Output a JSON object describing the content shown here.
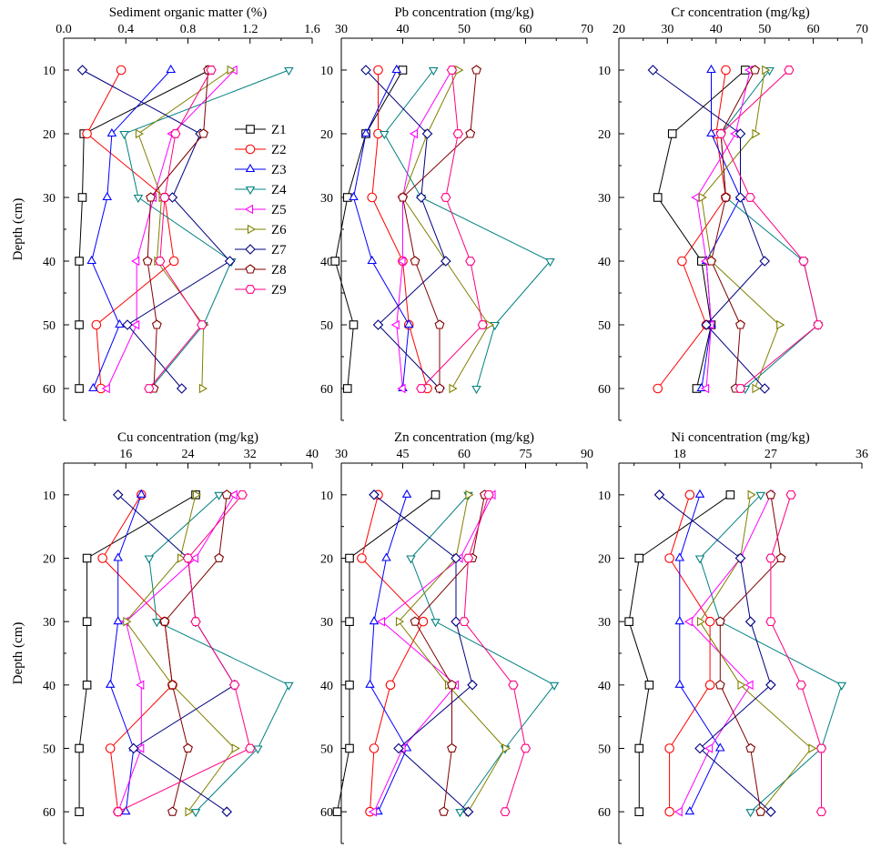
{
  "figure": {
    "y_axis_label": "Depth (cm)"
  },
  "series_styles": [
    {
      "name": "Z1",
      "color": "#000000",
      "marker": "square"
    },
    {
      "name": "Z2",
      "color": "#ff0000",
      "marker": "circle"
    },
    {
      "name": "Z3",
      "color": "#0000ff",
      "marker": "triangle-up"
    },
    {
      "name": "Z4",
      "color": "#008080",
      "marker": "triangle-down"
    },
    {
      "name": "Z5",
      "color": "#ff00ff",
      "marker": "triangle-left"
    },
    {
      "name": "Z6",
      "color": "#808000",
      "marker": "triangle-right"
    },
    {
      "name": "Z7",
      "color": "#000080",
      "marker": "diamond"
    },
    {
      "name": "Z8",
      "color": "#800000",
      "marker": "pentagon"
    },
    {
      "name": "Z9",
      "color": "#ff0080",
      "marker": "hexagon"
    }
  ],
  "chart_data": [
    {
      "type": "line",
      "title": "",
      "xlabel": "Sediment organic matter (%)",
      "ylabel": "Depth (cm)",
      "xlim": [
        0,
        1.6
      ],
      "xticks": [
        "0.0",
        "0.4",
        "0.8",
        "1.2",
        "1.6"
      ],
      "ylim": [
        5,
        65
      ],
      "yticks": [
        "10",
        "20",
        "30",
        "40",
        "50",
        "60"
      ],
      "y": [
        10,
        20,
        30,
        40,
        50,
        60
      ],
      "legend": "upper-right",
      "series": [
        {
          "name": "Z1",
          "values": [
            0.94,
            0.13,
            0.12,
            0.1,
            0.1,
            0.1
          ]
        },
        {
          "name": "Z2",
          "values": [
            0.37,
            0.15,
            0.65,
            0.71,
            0.21,
            0.24
          ]
        },
        {
          "name": "Z3",
          "values": [
            0.69,
            0.31,
            0.28,
            0.18,
            0.36,
            0.19
          ]
        },
        {
          "name": "Z4",
          "values": [
            1.45,
            0.39,
            0.48,
            1.08,
            0.9,
            0.56
          ]
        },
        {
          "name": "Z5",
          "values": [
            1.1,
            0.7,
            0.58,
            0.47,
            0.47,
            0.28
          ]
        },
        {
          "name": "Z6",
          "values": [
            1.07,
            0.48,
            0.63,
            0.6,
            0.9,
            0.89
          ]
        },
        {
          "name": "Z7",
          "values": [
            0.12,
            0.88,
            0.7,
            1.07,
            0.41,
            0.76
          ]
        },
        {
          "name": "Z8",
          "values": [
            0.93,
            0.9,
            0.56,
            0.54,
            0.6,
            0.58
          ]
        },
        {
          "name": "Z9",
          "values": [
            0.95,
            0.72,
            0.65,
            0.62,
            0.89,
            0.55
          ]
        }
      ]
    },
    {
      "type": "line",
      "title": "",
      "xlabel": "Pb concentration (mg/kg)",
      "ylabel": "",
      "xlim": [
        30,
        70
      ],
      "xticks": [
        "30",
        "40",
        "50",
        "60",
        "70"
      ],
      "ylim": [
        5,
        65
      ],
      "yticks": [
        "10",
        "20",
        "30",
        "40",
        "50",
        "60"
      ],
      "y": [
        10,
        20,
        30,
        40,
        50,
        60
      ],
      "series": [
        {
          "name": "Z1",
          "values": [
            40,
            34,
            31,
            29,
            32,
            31
          ]
        },
        {
          "name": "Z2",
          "values": [
            36,
            36,
            35,
            40,
            41,
            44
          ]
        },
        {
          "name": "Z3",
          "values": [
            39,
            34,
            32,
            35,
            41,
            40
          ]
        },
        {
          "name": "Z4",
          "values": [
            45,
            37,
            43,
            64,
            55,
            52
          ]
        },
        {
          "name": "Z5",
          "values": [
            48,
            42,
            40,
            40,
            39,
            40
          ]
        },
        {
          "name": "Z6",
          "values": [
            49,
            44,
            40,
            47,
            54,
            48
          ]
        },
        {
          "name": "Z7",
          "values": [
            34,
            44,
            43,
            47,
            36,
            46
          ]
        },
        {
          "name": "Z8",
          "values": [
            52,
            51,
            40,
            42,
            46,
            46
          ]
        },
        {
          "name": "Z9",
          "values": [
            48,
            49,
            47,
            51,
            53,
            43
          ]
        }
      ]
    },
    {
      "type": "line",
      "title": "",
      "xlabel": "Cr concentration (mg/kg)",
      "ylabel": "",
      "xlim": [
        20,
        70
      ],
      "xticks": [
        "20",
        "30",
        "40",
        "50",
        "60",
        "70"
      ],
      "ylim": [
        5,
        65
      ],
      "yticks": [
        "10",
        "20",
        "30",
        "40",
        "50",
        "60"
      ],
      "y": [
        10,
        20,
        30,
        40,
        50,
        60
      ],
      "series": [
        {
          "name": "Z1",
          "values": [
            46,
            31,
            28,
            37,
            39,
            36
          ]
        },
        {
          "name": "Z2",
          "values": [
            42,
            40,
            42,
            33,
            38,
            28
          ]
        },
        {
          "name": "Z3",
          "values": [
            39,
            39,
            45,
            38,
            39,
            37
          ]
        },
        {
          "name": "Z4",
          "values": [
            51,
            41,
            42,
            58,
            61,
            46
          ]
        },
        {
          "name": "Z5",
          "values": [
            47,
            44,
            36,
            38,
            39,
            38
          ]
        },
        {
          "name": "Z6",
          "values": [
            50,
            48,
            37,
            39,
            53,
            48
          ]
        },
        {
          "name": "Z7",
          "values": [
            27,
            45,
            45,
            50,
            38,
            50
          ]
        },
        {
          "name": "Z8",
          "values": [
            48,
            41,
            42,
            39,
            45,
            44
          ]
        },
        {
          "name": "Z9",
          "values": [
            55,
            41,
            47,
            58,
            61,
            45
          ]
        }
      ]
    },
    {
      "type": "line",
      "title": "",
      "xlabel": "Cu concentration (mg/kg)",
      "ylabel": "Depth (cm)",
      "xlim": [
        8,
        40
      ],
      "xticks": [
        "16",
        "24",
        "32",
        "40"
      ],
      "ylim": [
        5,
        65
      ],
      "yticks": [
        "10",
        "20",
        "30",
        "40",
        "50",
        "60"
      ],
      "y": [
        10,
        20,
        30,
        40,
        50,
        60
      ],
      "series": [
        {
          "name": "Z1",
          "values": [
            25,
            11,
            11,
            11,
            10,
            10
          ]
        },
        {
          "name": "Z2",
          "values": [
            18,
            13,
            21,
            22,
            14,
            15
          ]
        },
        {
          "name": "Z3",
          "values": [
            18,
            15,
            15,
            14,
            17,
            16
          ]
        },
        {
          "name": "Z4",
          "values": [
            28,
            19,
            20,
            37,
            33,
            25
          ]
        },
        {
          "name": "Z5",
          "values": [
            30,
            25,
            16,
            18,
            18,
            15
          ]
        },
        {
          "name": "Z6",
          "values": [
            25,
            23,
            16,
            22,
            30,
            24
          ]
        },
        {
          "name": "Z7",
          "values": [
            15,
            24,
            25,
            30,
            17,
            29
          ]
        },
        {
          "name": "Z8",
          "values": [
            29,
            28,
            21,
            22,
            24,
            22
          ]
        },
        {
          "name": "Z9",
          "values": [
            31,
            24,
            25,
            30,
            32,
            15
          ]
        }
      ]
    },
    {
      "type": "line",
      "title": "",
      "xlabel": "Zn concentration (mg/kg)",
      "ylabel": "",
      "xlim": [
        30,
        90
      ],
      "xticks": [
        "30",
        "45",
        "60",
        "75",
        "90"
      ],
      "ylim": [
        5,
        65
      ],
      "yticks": [
        "10",
        "20",
        "30",
        "40",
        "50",
        "60"
      ],
      "y": [
        10,
        20,
        30,
        40,
        50,
        60
      ],
      "series": [
        {
          "name": "Z1",
          "values": [
            53,
            32,
            32,
            32,
            32,
            29
          ]
        },
        {
          "name": "Z2",
          "values": [
            39,
            35,
            50,
            42,
            38,
            37
          ]
        },
        {
          "name": "Z3",
          "values": [
            46,
            41,
            38,
            37,
            46,
            39
          ]
        },
        {
          "name": "Z4",
          "values": [
            61,
            47,
            53,
            82,
            70,
            59
          ]
        },
        {
          "name": "Z5",
          "values": [
            67,
            59,
            40,
            58,
            45,
            38
          ]
        },
        {
          "name": "Z6",
          "values": [
            61,
            58,
            44,
            56,
            70,
            61
          ]
        },
        {
          "name": "Z7",
          "values": [
            38,
            58,
            58,
            62,
            44,
            61
          ]
        },
        {
          "name": "Z8",
          "values": [
            65,
            62,
            48,
            57,
            57,
            55
          ]
        },
        {
          "name": "Z9",
          "values": [
            66,
            61,
            60,
            72,
            75,
            70
          ]
        }
      ]
    },
    {
      "type": "line",
      "title": "",
      "xlabel": "Ni concentration (mg/kg)",
      "ylabel": "",
      "xlim": [
        12,
        36
      ],
      "xticks": [
        "18",
        "27",
        "36"
      ],
      "ylim": [
        5,
        65
      ],
      "yticks": [
        "10",
        "20",
        "30",
        "40",
        "50",
        "60"
      ],
      "y": [
        10,
        20,
        30,
        40,
        50,
        60
      ],
      "series": [
        {
          "name": "Z1",
          "values": [
            23,
            14,
            13,
            15,
            14,
            14
          ]
        },
        {
          "name": "Z2",
          "values": [
            19,
            17,
            21,
            21,
            17,
            17
          ]
        },
        {
          "name": "Z3",
          "values": [
            20,
            18,
            18,
            18,
            22,
            19
          ]
        },
        {
          "name": "Z4",
          "values": [
            26,
            20,
            22,
            34,
            32,
            25
          ]
        },
        {
          "name": "Z5",
          "values": [
            27,
            24,
            19,
            25,
            21,
            18
          ]
        },
        {
          "name": "Z6",
          "values": [
            25,
            24,
            20,
            24,
            31,
            26
          ]
        },
        {
          "name": "Z7",
          "values": [
            16,
            24,
            25,
            27,
            20,
            27
          ]
        },
        {
          "name": "Z8",
          "values": [
            27,
            28,
            22,
            22,
            25,
            26
          ]
        },
        {
          "name": "Z9",
          "values": [
            29,
            27,
            27,
            30,
            32,
            32
          ]
        }
      ]
    }
  ]
}
